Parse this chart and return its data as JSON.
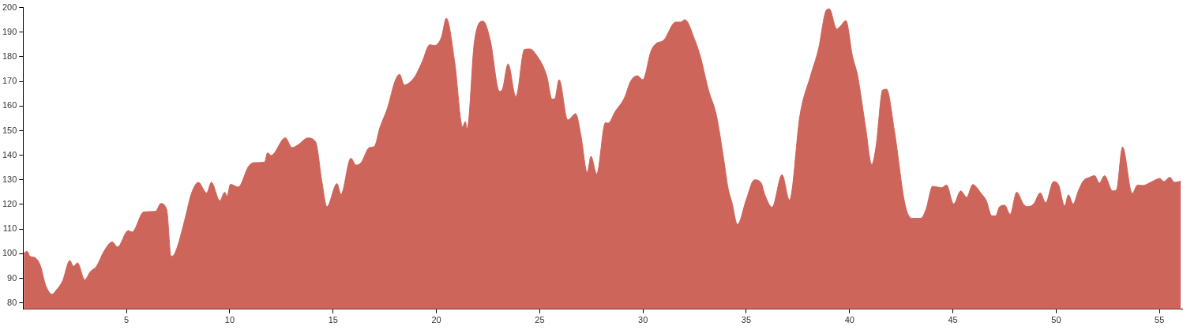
{
  "chart_data": {
    "type": "area",
    "color": "#cd655b",
    "xlim": [
      0,
      56.1
    ],
    "ylim": [
      77.4,
      200
    ],
    "xticks": [
      5,
      10,
      15,
      20,
      25,
      30,
      35,
      40,
      45,
      50,
      55
    ],
    "yticks": [
      80,
      90,
      100,
      110,
      120,
      130,
      140,
      150,
      160,
      170,
      180,
      190,
      200
    ],
    "x": [
      0.03,
      0.19,
      0.32,
      0.57,
      0.83,
      1.09,
      1.4,
      1.59,
      1.9,
      2.26,
      2.43,
      2.63,
      2.98,
      3.24,
      3.55,
      3.93,
      4.31,
      4.57,
      5.08,
      5.27,
      5.84,
      6.41,
      6.66,
      6.95,
      7.16,
      7.36,
      7.87,
      8.12,
      8.48,
      8.88,
      9.11,
      9.52,
      9.75,
      9.87,
      10.03,
      10.41,
      10.91,
      11.17,
      11.68,
      11.83,
      12.0,
      12.69,
      13.01,
      13.33,
      13.77,
      14.15,
      14.47,
      14.7,
      15.19,
      15.38,
      15.86,
      16.11,
      16.36,
      16.75,
      17.0,
      17.26,
      17.64,
      18.0,
      18.22,
      18.44,
      18.92,
      19.3,
      19.68,
      19.91,
      20.25,
      20.48,
      20.89,
      21.27,
      21.4,
      21.49,
      21.84,
      22.26,
      22.61,
      23.05,
      23.18,
      23.47,
      23.85,
      24.26,
      24.52,
      24.83,
      25.34,
      25.6,
      25.73,
      25.94,
      26.36,
      26.74,
      27.0,
      27.3,
      27.48,
      27.76,
      28.18,
      28.31,
      28.65,
      29.1,
      29.41,
      29.73,
      29.99,
      30.39,
      30.62,
      31.0,
      31.58,
      31.83,
      32.02,
      32.53,
      32.79,
      33.17,
      33.55,
      33.91,
      34.12,
      34.31,
      34.57,
      35.01,
      35.39,
      35.71,
      35.9,
      36.25,
      36.73,
      37.09,
      37.6,
      38.11,
      38.49,
      38.87,
      39.02,
      39.38,
      39.57,
      39.82,
      40.14,
      40.39,
      40.78,
      41.07,
      41.28,
      41.6,
      41.79,
      42.17,
      42.68,
      43.0,
      43.45,
      43.7,
      44.02,
      44.46,
      44.69,
      45.04,
      45.38,
      45.67,
      45.96,
      46.37,
      46.62,
      46.88,
      47.07,
      47.26,
      47.51,
      47.77,
      48.09,
      48.41,
      48.6,
      48.91,
      49.23,
      49.49,
      49.87,
      50.12,
      50.41,
      50.59,
      50.82,
      51.07,
      51.33,
      51.58,
      51.86,
      52.09,
      52.34,
      52.73,
      52.92,
      53.21,
      53.68,
      53.94,
      54.19,
      54.64,
      55.02,
      55.21,
      55.5,
      55.72,
      56.03
    ],
    "values": [
      100.2,
      101,
      99,
      98.4,
      95.2,
      87.2,
      83.5,
      85.1,
      88.8,
      97.2,
      94.9,
      96.3,
      89.4,
      92.6,
      94.9,
      101.3,
      104.8,
      102.7,
      109.4,
      108.8,
      117,
      117.2,
      120.4,
      117.8,
      98.9,
      100.5,
      115.4,
      123.9,
      129,
      124.7,
      129,
      121.5,
      125,
      123.4,
      128.2,
      127.1,
      135.5,
      137,
      137.2,
      141,
      139.9,
      147.1,
      143.1,
      144.4,
      147,
      145.5,
      128.7,
      119.1,
      128.5,
      124.1,
      138.8,
      136,
      137,
      143.1,
      143.6,
      151.1,
      159.4,
      170.2,
      172.9,
      168.6,
      171.5,
      177.7,
      184.9,
      184.6,
      188.1,
      195.7,
      177.7,
      151.6,
      153.7,
      150.7,
      186.2,
      194.5,
      186.7,
      166,
      166.5,
      177.1,
      163.8,
      183,
      183.2,
      180.9,
      172.3,
      162.8,
      163,
      170.7,
      154.3,
      156.9,
      147.9,
      133,
      139.6,
      132.4,
      153.2,
      153,
      157.7,
      163.3,
      170.2,
      172.3,
      170.7,
      182.4,
      185.3,
      186.7,
      194.1,
      194.1,
      195.1,
      186.4,
      179.8,
      166.5,
      156.4,
      138.3,
      126.6,
      120.7,
      111.9,
      122.3,
      130,
      128.9,
      123.9,
      118.9,
      132.1,
      121.8,
      156.4,
      172.3,
      183,
      198.9,
      199.5,
      191.3,
      192.6,
      194.7,
      180.3,
      172.3,
      151.1,
      136.2,
      143.6,
      166.5,
      166.8,
      150,
      120.2,
      114.4,
      114.4,
      118.1,
      127.4,
      126.8,
      127.9,
      120.2,
      125.5,
      122.9,
      128.1,
      124.5,
      121.5,
      115.4,
      115.4,
      119.1,
      119.7,
      116,
      125,
      120.2,
      119.1,
      120.2,
      124.7,
      120.7,
      129.3,
      127.9,
      119.4,
      123.9,
      120.2,
      125.5,
      129.8,
      130.9,
      131.7,
      128.7,
      131.7,
      125.5,
      126,
      143.4,
      124.5,
      127.9,
      127.7,
      129.3,
      130.6,
      129.3,
      131.1,
      129,
      129.5
    ]
  }
}
